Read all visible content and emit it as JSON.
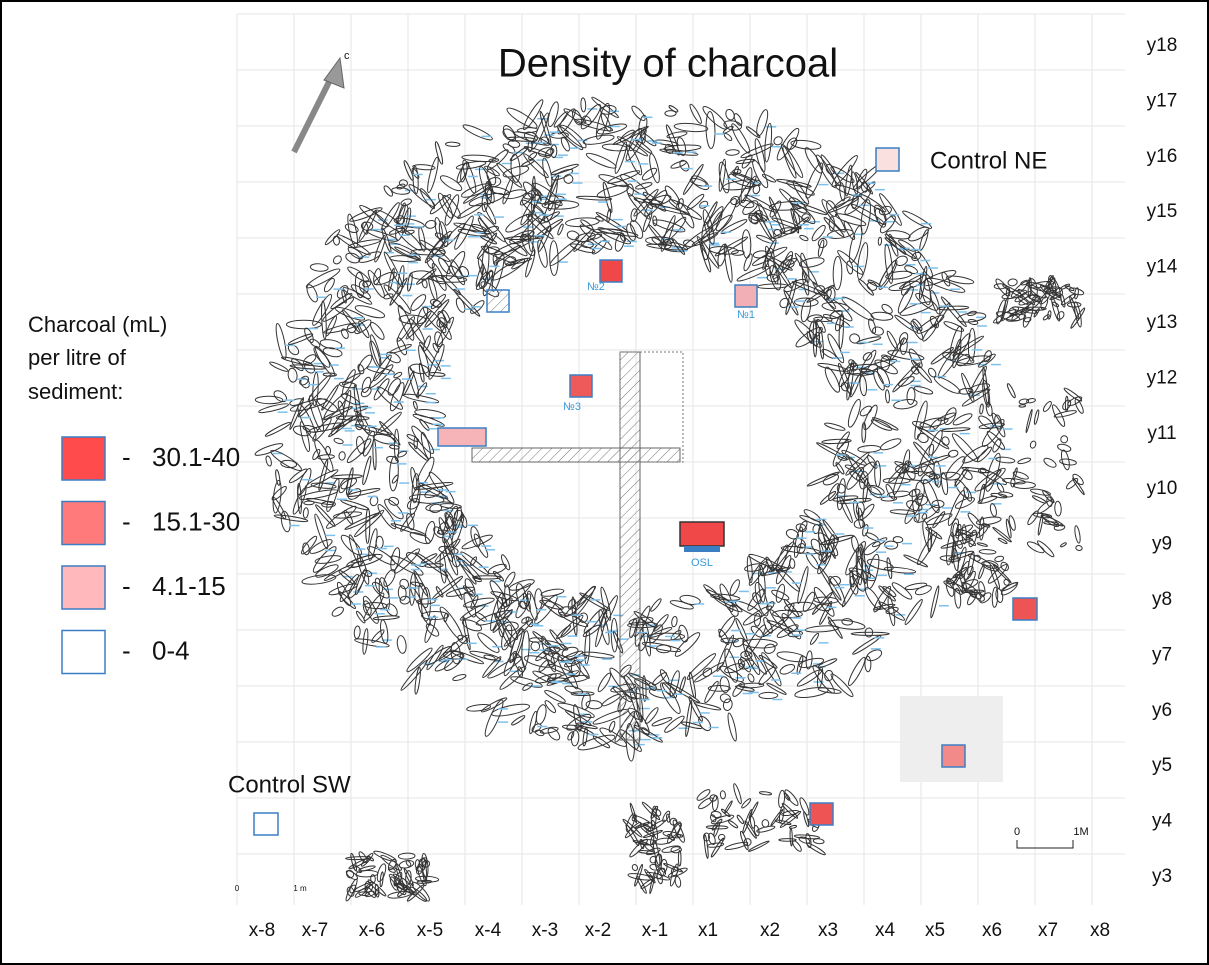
{
  "title": "Density of charcoal",
  "north_label": "c",
  "legend": {
    "heading": [
      "Charcoal (mL)",
      "per litre of",
      "sediment:"
    ],
    "separator": "-",
    "items": [
      "30.1-40",
      "15.1-30",
      "4.1-15",
      "0-4"
    ]
  },
  "controls": [
    "Control NE",
    "Control SW"
  ],
  "samples": [
    "№1",
    "№2",
    "№3",
    "OSL"
  ],
  "x_grid_labels": [
    "x-8",
    "x-7",
    "x-6",
    "x-5",
    "x-4",
    "x-3",
    "x-2",
    "x-1",
    "x1",
    "x2",
    "x3",
    "x4",
    "x5",
    "x6",
    "x7",
    "x8"
  ],
  "y_grid_labels": [
    "y18",
    "y17",
    "y16",
    "y15",
    "y14",
    "y13",
    "y12",
    "y11",
    "y10",
    "y9",
    "y8",
    "y7",
    "y6",
    "y5",
    "y4",
    "y3"
  ],
  "scale_bars": [
    [
      "0",
      "1M"
    ],
    [
      "0",
      "1 m"
    ]
  ]
}
